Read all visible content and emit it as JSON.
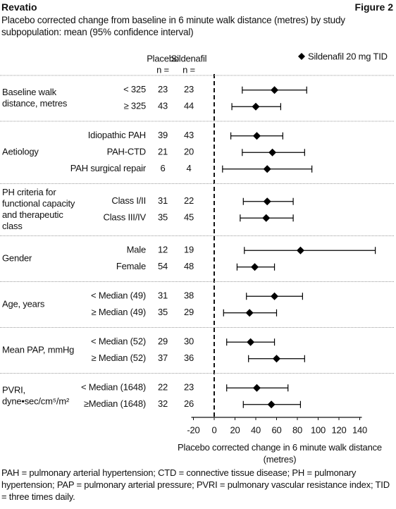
{
  "header": {
    "left": "Revatio",
    "right": "Figure 2"
  },
  "chart_data": {
    "type": "forest",
    "title": "Placebo corrected change from baseline in 6 minute walk distance (metres) by study subpopulation: mean (95% confidence interval)",
    "column_headers": [
      [
        "Placebo",
        "n ="
      ],
      [
        "Sildenafil",
        "n ="
      ]
    ],
    "series": [
      {
        "name": "Sildenafil 20 mg TID",
        "color": "#000000"
      }
    ],
    "x_label": "Placebo corrected change in 6 minute walk distance (metres)",
    "xlim": [
      -20,
      140
    ],
    "xticks": [
      -20,
      0,
      20,
      40,
      60,
      80,
      100,
      120,
      140
    ],
    "groups": [
      {
        "label_lines": [
          "Baseline walk",
          "distance, metres"
        ],
        "rows": [
          {
            "label": "< 325",
            "placebo_n": 23,
            "sildenafil_n": 23,
            "mean": 58,
            "lower": 27,
            "upper": 89
          },
          {
            "label": "≥ 325",
            "placebo_n": 43,
            "sildenafil_n": 44,
            "mean": 40,
            "lower": 17,
            "upper": 64
          }
        ]
      },
      {
        "label_lines": [
          "Aetiology"
        ],
        "rows": [
          {
            "label": "Idiopathic PAH",
            "placebo_n": 39,
            "sildenafil_n": 43,
            "mean": 41,
            "lower": 16,
            "upper": 66
          },
          {
            "label": "PAH-CTD",
            "placebo_n": 21,
            "sildenafil_n": 20,
            "mean": 56,
            "lower": 27,
            "upper": 87
          },
          {
            "label": "PAH surgical repair",
            "placebo_n": 6,
            "sildenafil_n": 4,
            "mean": 51,
            "lower": 8,
            "upper": 94
          }
        ]
      },
      {
        "label_lines": [
          "PH criteria for",
          "functional capacity",
          "and therapeutic",
          "class"
        ],
        "rows": [
          {
            "label": "Class I/II",
            "placebo_n": 31,
            "sildenafil_n": 22,
            "mean": 51,
            "lower": 28,
            "upper": 76
          },
          {
            "label": "Class III/IV",
            "placebo_n": 35,
            "sildenafil_n": 45,
            "mean": 50,
            "lower": 25,
            "upper": 76
          }
        ]
      },
      {
        "label_lines": [
          "Gender"
        ],
        "rows": [
          {
            "label": "Male",
            "placebo_n": 12,
            "sildenafil_n": 19,
            "mean": 83,
            "lower": 29,
            "upper": 155
          },
          {
            "label": "Female",
            "placebo_n": 54,
            "sildenafil_n": 48,
            "mean": 39,
            "lower": 22,
            "upper": 58
          }
        ]
      },
      {
        "label_lines": [
          "Age, years"
        ],
        "rows": [
          {
            "label": "< Median (49)",
            "placebo_n": 31,
            "sildenafil_n": 38,
            "mean": 58,
            "lower": 31,
            "upper": 85
          },
          {
            "label": "≥ Median (49)",
            "placebo_n": 35,
            "sildenafil_n": 29,
            "mean": 34,
            "lower": 9,
            "upper": 60
          }
        ]
      },
      {
        "label_lines": [
          "Mean PAP, mmHg"
        ],
        "rows": [
          {
            "label": "< Median (52)",
            "placebo_n": 29,
            "sildenafil_n": 30,
            "mean": 35,
            "lower": 12,
            "upper": 58
          },
          {
            "label": "≥ Median (52)",
            "placebo_n": 37,
            "sildenafil_n": 36,
            "mean": 60,
            "lower": 33,
            "upper": 87
          }
        ]
      },
      {
        "label_lines": [
          "PVRI,",
          "dyne•sec/cm⁵/m²"
        ],
        "rows": [
          {
            "label": "< Median (1648)",
            "placebo_n": 22,
            "sildenafil_n": 23,
            "mean": 41,
            "lower": 12,
            "upper": 71
          },
          {
            "label": "≥Median (1648)",
            "placebo_n": 32,
            "sildenafil_n": 26,
            "mean": 55,
            "lower": 28,
            "upper": 83
          }
        ]
      }
    ]
  },
  "footnote": "PAH = pulmonary arterial hypertension; CTD = connective tissue disease; PH = pulmonary hypertension; PAP = pulmonary arterial pressure; PVRI = pulmonary vascular resistance index; TID = three times daily."
}
